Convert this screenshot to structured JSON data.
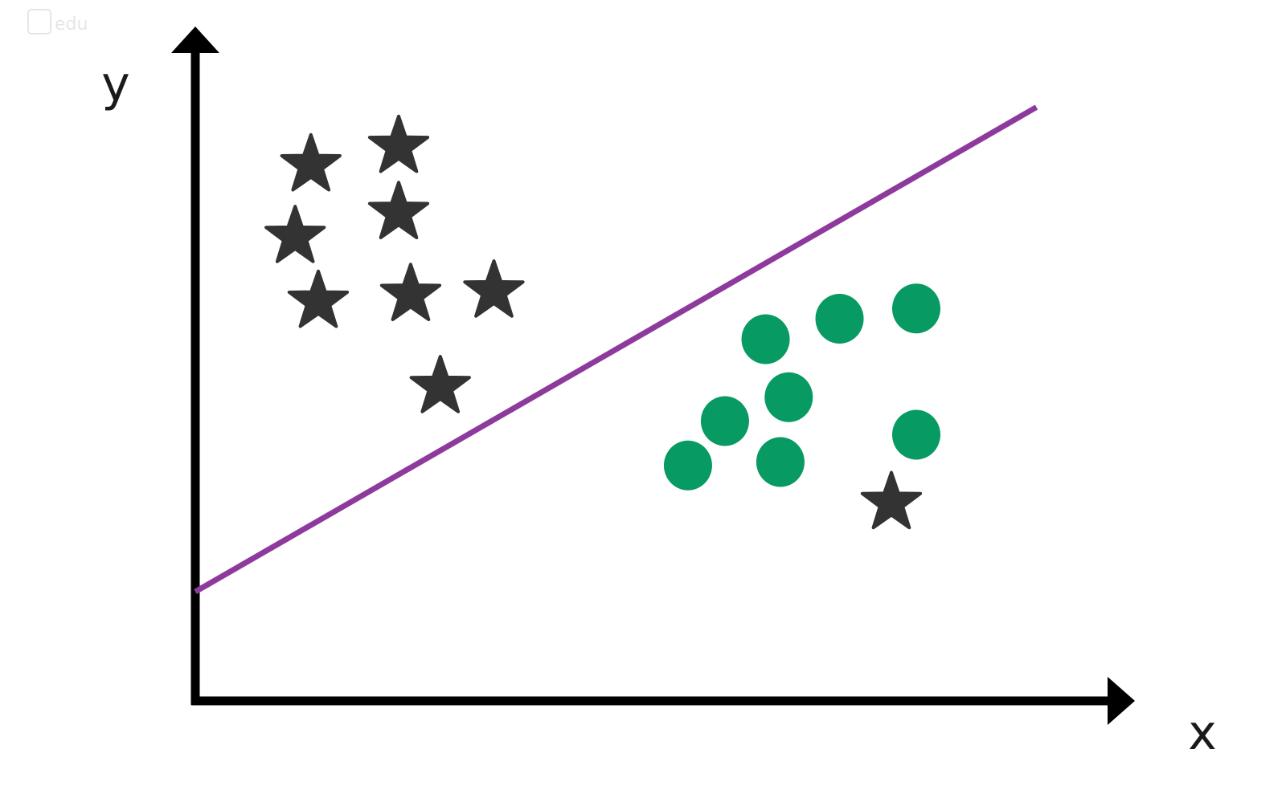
{
  "watermark": "edu",
  "chart_data": {
    "type": "scatter",
    "title": "",
    "xlabel": "x",
    "ylabel": "y",
    "xlim": [
      0,
      10
    ],
    "ylim": [
      0,
      10
    ],
    "grid": false,
    "series": [
      {
        "name": "stars",
        "marker": "star",
        "color": "#333333",
        "points": [
          {
            "x": 1.25,
            "y": 7.85
          },
          {
            "x": 2.2,
            "y": 8.12
          },
          {
            "x": 1.08,
            "y": 6.8
          },
          {
            "x": 2.2,
            "y": 7.15
          },
          {
            "x": 3.23,
            "y": 6.0
          },
          {
            "x": 1.33,
            "y": 5.85
          },
          {
            "x": 2.33,
            "y": 5.95
          },
          {
            "x": 2.65,
            "y": 4.6
          },
          {
            "x": 7.53,
            "y": 2.9
          }
        ]
      },
      {
        "name": "circles",
        "marker": "circle",
        "color": "#079a62",
        "points": [
          {
            "x": 6.17,
            "y": 5.3
          },
          {
            "x": 6.97,
            "y": 5.6
          },
          {
            "x": 7.8,
            "y": 5.75
          },
          {
            "x": 6.42,
            "y": 4.45
          },
          {
            "x": 5.73,
            "y": 4.1
          },
          {
            "x": 5.33,
            "y": 3.45
          },
          {
            "x": 6.33,
            "y": 3.5
          },
          {
            "x": 7.8,
            "y": 3.9
          }
        ]
      }
    ],
    "decision_line": {
      "color": "#8e3a9d",
      "from": {
        "x": 0,
        "y": 1.6
      },
      "to": {
        "x": 9.1,
        "y": 8.7
      }
    }
  }
}
